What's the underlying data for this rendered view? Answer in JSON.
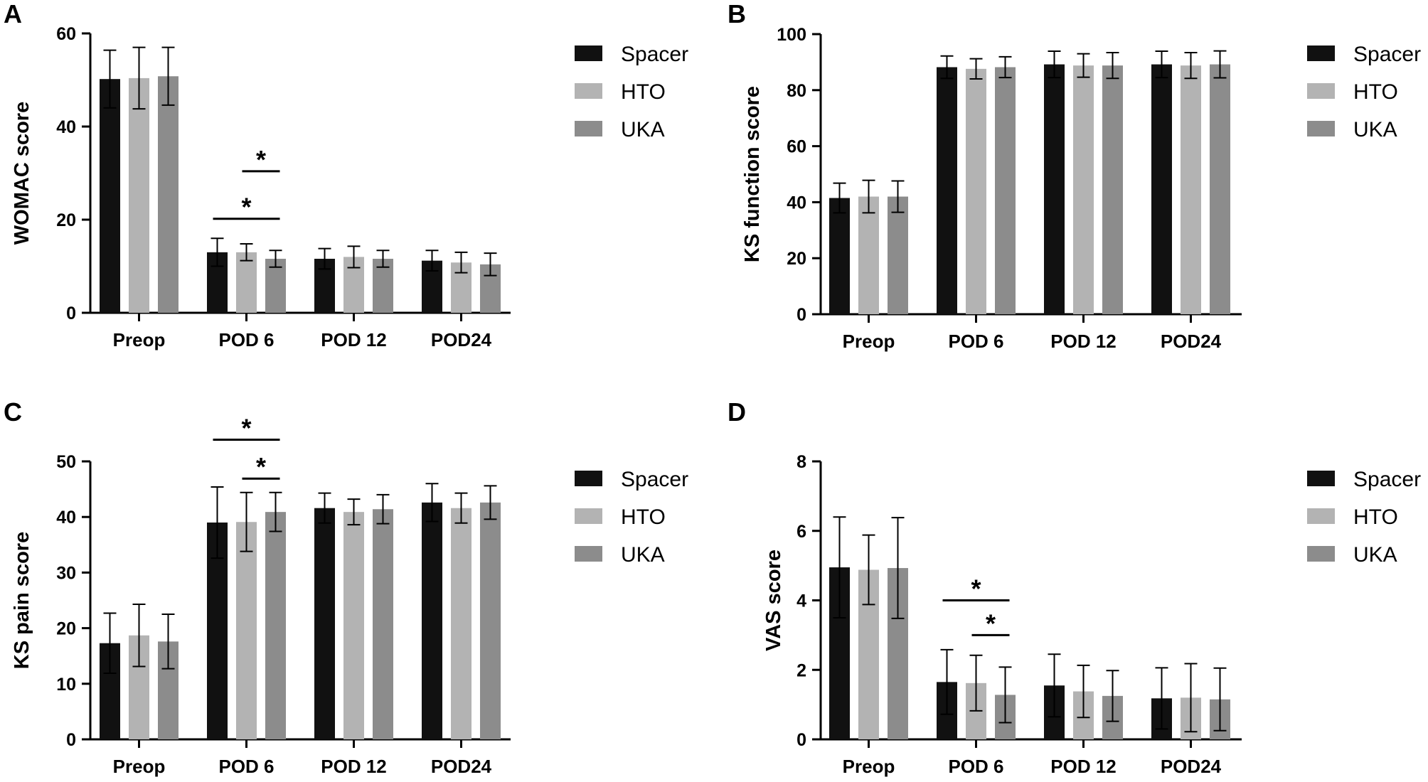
{
  "series_colors": {
    "Spacer": "#111111",
    "HTO": "#b3b3b3",
    "UKA": "#8c8c8c"
  },
  "chart_data": [
    {
      "panel": "A",
      "type": "bar",
      "ylabel": "WOMAC score",
      "categories": [
        "Preop",
        "POD 6",
        "POD 12",
        "POD24"
      ],
      "ylim": [
        0,
        60
      ],
      "yticks": [
        "0",
        "20",
        "40",
        "60"
      ],
      "series": [
        {
          "name": "Spacer",
          "values": [
            50.2,
            13.0,
            11.6,
            11.2
          ],
          "errors": [
            6.2,
            3.0,
            2.2,
            2.2
          ]
        },
        {
          "name": "HTO",
          "values": [
            50.4,
            13.0,
            12.0,
            10.8
          ],
          "errors": [
            6.6,
            1.8,
            2.3,
            2.2
          ]
        },
        {
          "name": "UKA",
          "values": [
            50.8,
            11.6,
            11.6,
            10.4
          ],
          "errors": [
            6.2,
            1.8,
            1.8,
            2.4
          ]
        }
      ],
      "significance": [
        {
          "category": "POD 6",
          "from": "Spacer",
          "to": "UKA",
          "y": 20.2,
          "label": "*"
        },
        {
          "category": "POD 6",
          "from": "HTO",
          "to": "UKA",
          "y": 30.4,
          "label": "*"
        }
      ],
      "legend_position": "right"
    },
    {
      "panel": "B",
      "type": "bar",
      "ylabel": "KS function score",
      "categories": [
        "Preop",
        "POD 6",
        "POD 12",
        "POD24"
      ],
      "ylim": [
        0,
        100
      ],
      "yticks": [
        "0",
        "20",
        "40",
        "60",
        "80",
        "100"
      ],
      "series": [
        {
          "name": "Spacer",
          "values": [
            41.5,
            88.2,
            89.2,
            89.2
          ],
          "errors": [
            5.3,
            4.0,
            4.7,
            4.7
          ]
        },
        {
          "name": "HTO",
          "values": [
            42.0,
            87.6,
            88.8,
            88.8
          ],
          "errors": [
            5.8,
            3.6,
            4.2,
            4.6
          ]
        },
        {
          "name": "UKA",
          "values": [
            42.0,
            88.2,
            88.8,
            89.2
          ],
          "errors": [
            5.6,
            3.7,
            4.6,
            4.8
          ]
        }
      ],
      "significance": [],
      "legend_position": "right"
    },
    {
      "panel": "C",
      "type": "bar",
      "ylabel": "KS pain score",
      "categories": [
        "Preop",
        "POD 6",
        "POD 12",
        "POD24"
      ],
      "ylim": [
        0,
        50
      ],
      "yticks": [
        "0",
        "10",
        "20",
        "30",
        "40",
        "50"
      ],
      "series": [
        {
          "name": "Spacer",
          "values": [
            17.3,
            39.0,
            41.6,
            42.6
          ],
          "errors": [
            5.4,
            6.4,
            2.7,
            3.4
          ]
        },
        {
          "name": "HTO",
          "values": [
            18.7,
            39.1,
            40.9,
            41.6
          ],
          "errors": [
            5.6,
            5.3,
            2.3,
            2.7
          ]
        },
        {
          "name": "UKA",
          "values": [
            17.6,
            40.9,
            41.4,
            42.6
          ],
          "errors": [
            4.9,
            3.5,
            2.6,
            3.0
          ]
        }
      ],
      "significance": [
        {
          "category": "POD 6",
          "from": "HTO",
          "to": "UKA",
          "y": 46.9,
          "label": "*"
        },
        {
          "category": "POD 6",
          "from": "Spacer",
          "to": "UKA",
          "y": 53.9,
          "label": "*"
        }
      ],
      "legend_position": "right"
    },
    {
      "panel": "D",
      "type": "bar",
      "ylabel": "VAS score",
      "categories": [
        "Preop",
        "POD 6",
        "POD 12",
        "POD24"
      ],
      "ylim": [
        0,
        8
      ],
      "yticks": [
        "0",
        "2",
        "4",
        "6",
        "8"
      ],
      "series": [
        {
          "name": "Spacer",
          "values": [
            4.95,
            1.65,
            1.55,
            1.18
          ],
          "errors": [
            1.45,
            0.93,
            0.9,
            0.88
          ]
        },
        {
          "name": "HTO",
          "values": [
            4.88,
            1.62,
            1.38,
            1.2
          ],
          "errors": [
            1.0,
            0.8,
            0.75,
            0.98
          ]
        },
        {
          "name": "UKA",
          "values": [
            4.93,
            1.28,
            1.25,
            1.15
          ],
          "errors": [
            1.45,
            0.8,
            0.73,
            0.9
          ]
        }
      ],
      "significance": [
        {
          "category": "POD 6",
          "from": "Spacer",
          "to": "UKA",
          "y": 4.0,
          "label": "*"
        },
        {
          "category": "POD 6",
          "from": "HTO",
          "to": "UKA",
          "y": 3.0,
          "label": "*"
        }
      ],
      "legend_position": "right"
    }
  ]
}
